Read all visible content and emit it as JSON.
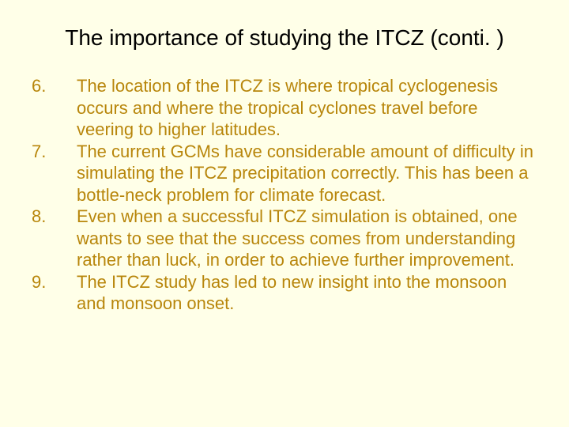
{
  "background_color": "#ffffe8",
  "text_color": "#b8860b",
  "title_color": "#000000",
  "title_fontsize": 28,
  "body_fontsize": 22,
  "title": "The importance of studying the ITCZ (conti. )",
  "items": [
    {
      "number": "6.",
      "text": "The location of the ITCZ is where tropical cyclogenesis occurs and where the tropical cyclones travel before veering to higher latitudes."
    },
    {
      "number": "7.",
      "text": "The current GCMs have considerable amount of difficulty in simulating the ITCZ precipitation correctly.  This has been a bottle-neck problem for climate forecast."
    },
    {
      "number": "8.",
      "text": "Even when a successful ITCZ simulation is obtained, one wants to see that the success comes from understanding rather than luck, in order to achieve further improvement."
    },
    {
      "number": "9.",
      "text": "The ITCZ study has led to new insight into the monsoon and monsoon onset."
    }
  ]
}
